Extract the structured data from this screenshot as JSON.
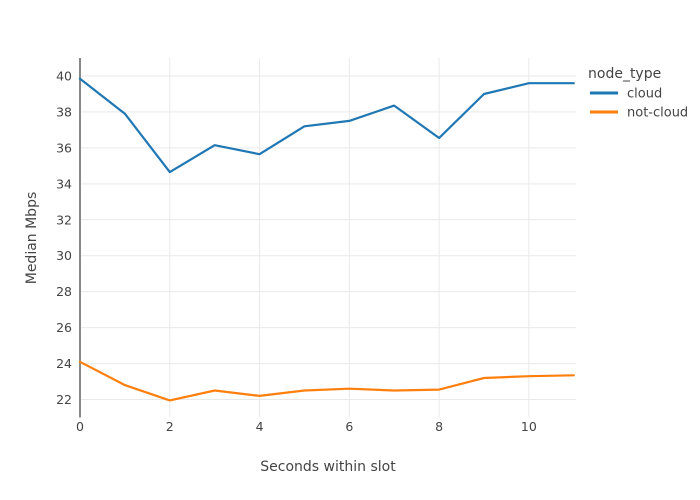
{
  "chart_data": {
    "type": "line",
    "title": "",
    "xlabel": "Seconds within slot",
    "ylabel": "Median Mbps",
    "legend_title": "node_type",
    "x": [
      0,
      1,
      2,
      3,
      4,
      5,
      6,
      7,
      8,
      9,
      10,
      11
    ],
    "series": [
      {
        "name": "cloud",
        "color": "#1f77b4",
        "values": [
          39.85,
          37.9,
          34.65,
          36.15,
          35.65,
          37.2,
          37.5,
          38.35,
          36.55,
          39.0,
          39.6,
          39.6
        ]
      },
      {
        "name": "not-cloud",
        "color": "#ff7f0e",
        "values": [
          24.1,
          22.8,
          21.95,
          22.5,
          22.2,
          22.5,
          22.6,
          22.5,
          22.55,
          23.2,
          23.3,
          23.35
        ]
      }
    ],
    "xlim": [
      0,
      11.05
    ],
    "ylim": [
      21,
      41
    ],
    "xticks": [
      0,
      2,
      4,
      6,
      8,
      10
    ],
    "yticks": [
      22,
      24,
      26,
      28,
      30,
      32,
      34,
      36,
      38,
      40
    ],
    "grid": true,
    "legend_position": "outside-top-right",
    "colors": {
      "grid": "#e9e9e9",
      "zeroline": "#888888",
      "text": "#444444",
      "background": "#ffffff",
      "cloud": "#1f77b4",
      "not_cloud": "#ff7f0e"
    }
  }
}
